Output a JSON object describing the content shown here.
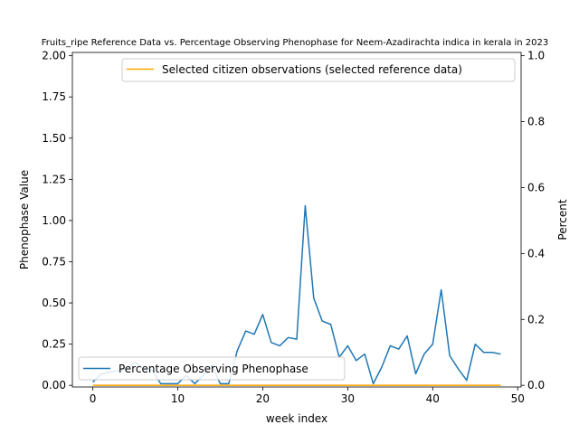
{
  "chart_data": {
    "type": "line",
    "title": "Fruits_ripe Reference Data vs. Percentage Observing Phenophase for Neem-Azadirachta indica in kerala in 2023",
    "xlabel": "week index",
    "ylabel_left": "Phenophase Value",
    "ylabel_right": "Percent",
    "xlim": [
      -2.4,
      50.4
    ],
    "ylim_left": [
      -0.01,
      2.02
    ],
    "ylim_right": [
      -0.005,
      1.01
    ],
    "x_ticks": [
      0,
      10,
      20,
      30,
      40,
      50
    ],
    "y_ticks_left": [
      "0.00",
      "0.25",
      "0.50",
      "0.75",
      "1.00",
      "1.25",
      "1.50",
      "1.75",
      "2.00"
    ],
    "y_ticks_right": [
      "0.0",
      "0.2",
      "0.4",
      "0.6",
      "0.8",
      "1.0"
    ],
    "grid": false,
    "series": [
      {
        "name": "Selected citizen observations (selected reference data)",
        "axis": "left",
        "color": "#ffa500",
        "x": [
          0,
          48
        ],
        "values": [
          0,
          0
        ]
      },
      {
        "name": "Percentage Observing Phenophase",
        "axis": "right",
        "color": "#1f77b4",
        "x": [
          0,
          1,
          2,
          3,
          4,
          5,
          6,
          7,
          8,
          9,
          10,
          11,
          12,
          13,
          14,
          15,
          16,
          17,
          18,
          19,
          20,
          21,
          22,
          23,
          24,
          25,
          26,
          27,
          28,
          29,
          30,
          31,
          32,
          33,
          34,
          35,
          36,
          37,
          38,
          39,
          40,
          41,
          42,
          43,
          44,
          45,
          46,
          47,
          48
        ],
        "values": [
          0.01,
          0.035,
          0.04,
          0.045,
          0.05,
          0.07,
          0.05,
          0.045,
          0.005,
          0.005,
          0.005,
          0.03,
          0.005,
          0.03,
          0.06,
          0.005,
          0.005,
          0.105,
          0.165,
          0.155,
          0.215,
          0.13,
          0.12,
          0.145,
          0.14,
          0.545,
          0.265,
          0.195,
          0.185,
          0.085,
          0.12,
          0.075,
          0.095,
          0.005,
          0.055,
          0.12,
          0.11,
          0.15,
          0.035,
          0.095,
          0.125,
          0.29,
          0.09,
          0.05,
          0.015,
          0.125,
          0.1,
          0.1,
          0.095
        ]
      }
    ],
    "legends": [
      {
        "position": "upper right",
        "entries": [
          "Selected citizen observations (selected reference data)"
        ]
      },
      {
        "position": "lower left",
        "entries": [
          "Percentage Observing Phenophase"
        ]
      }
    ]
  }
}
